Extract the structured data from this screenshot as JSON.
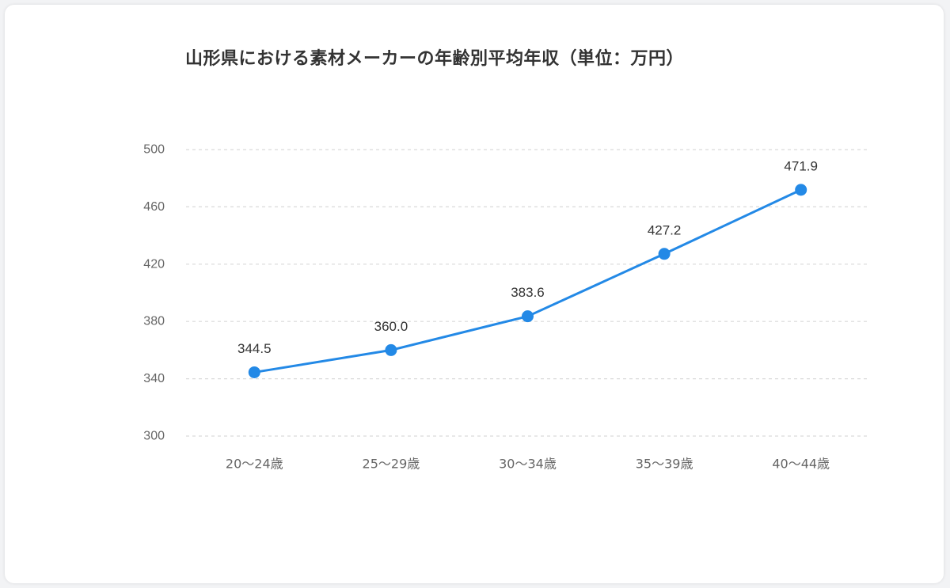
{
  "chart_data": {
    "type": "line",
    "title": "山形県における素材メーカーの年齢別平均年収（単位：万円）",
    "categories": [
      "20〜24歳",
      "25〜29歳",
      "30〜34歳",
      "35〜39歳",
      "40〜44歳"
    ],
    "series": [
      {
        "values": [
          344.5,
          360.0,
          383.6,
          427.2,
          471.9
        ]
      }
    ],
    "data_labels": [
      "344.5",
      "360.0",
      "383.6",
      "427.2",
      "471.9"
    ],
    "ylim": [
      300,
      500
    ],
    "yticks": [
      "300",
      "340",
      "380",
      "420",
      "460",
      "500"
    ],
    "grid": true,
    "legend": "none",
    "colors": {
      "line": "#2389e6",
      "grid": "#d9d9d9",
      "text": "#666666"
    }
  }
}
